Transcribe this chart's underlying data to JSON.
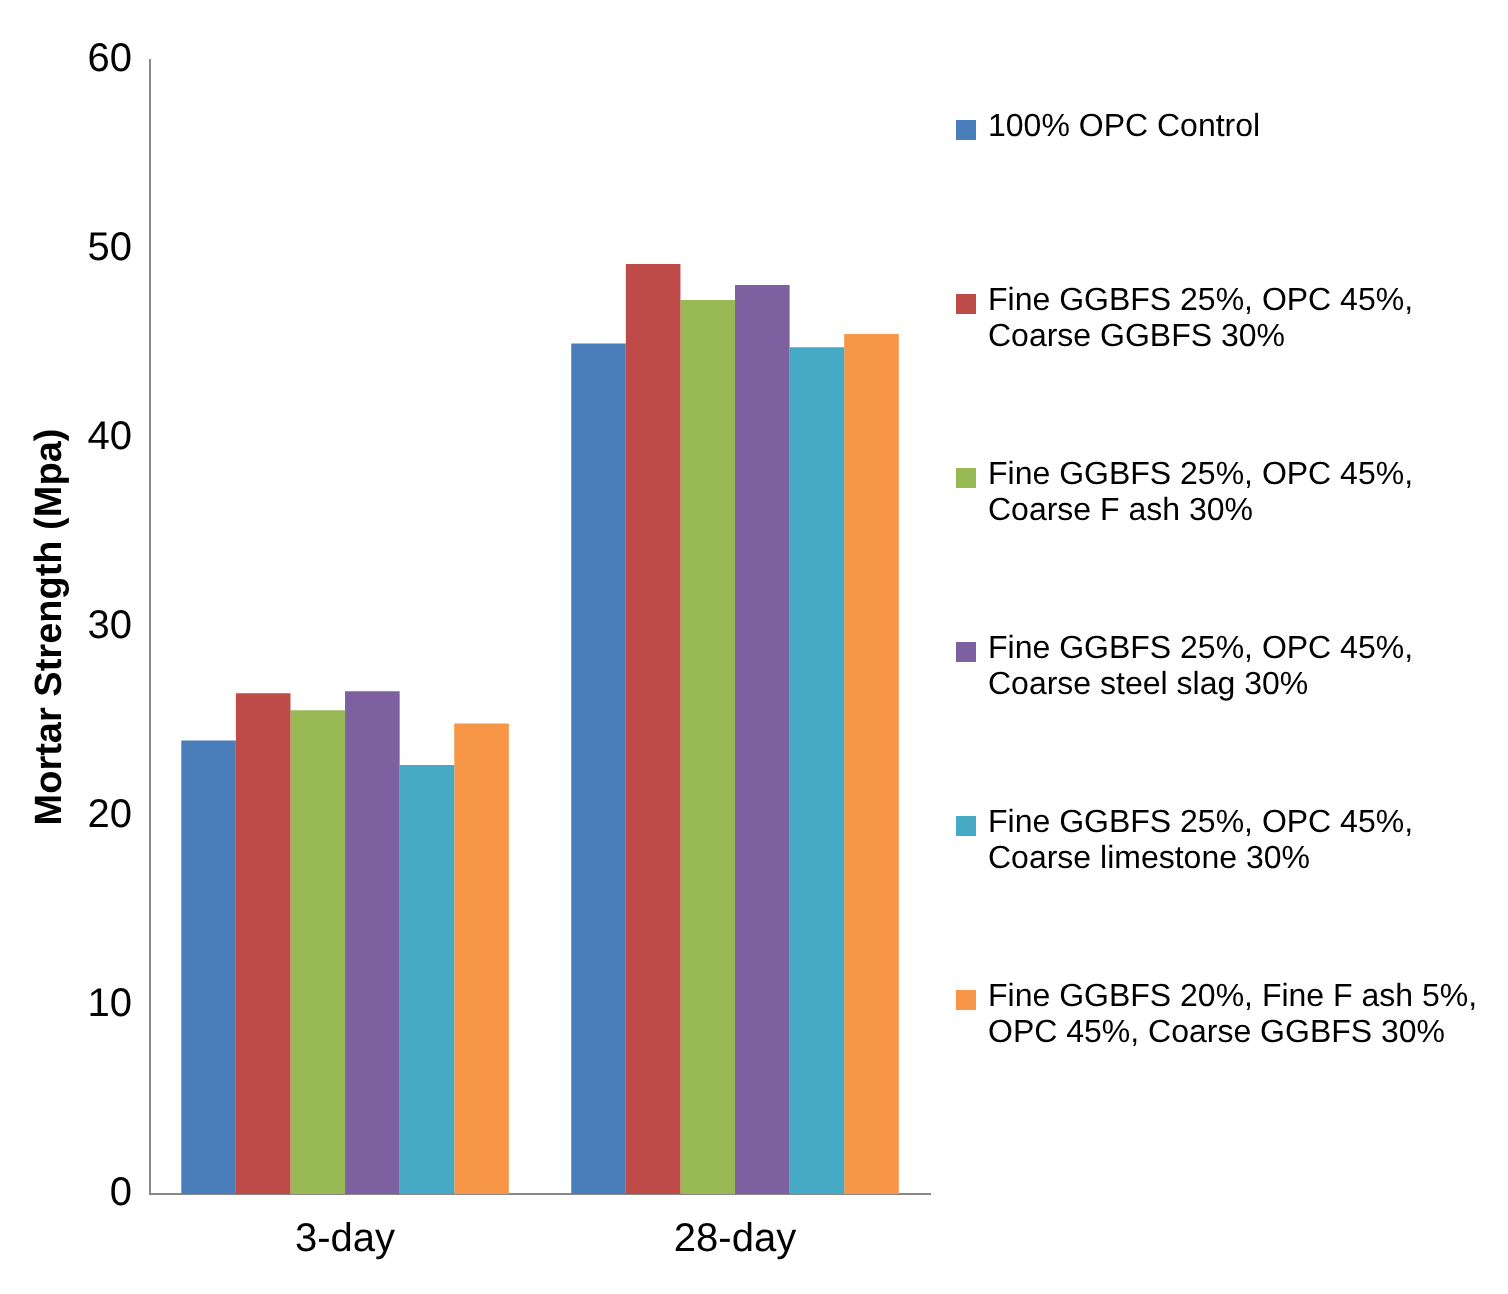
{
  "chart_data": {
    "type": "bar",
    "ylabel": "Mortar Strength (Mpa)",
    "categories": [
      "3-day",
      "28-day"
    ],
    "series": [
      {
        "name": "100% OPC Control",
        "color": "#4a7ebb",
        "values": [
          24.0,
          45.0
        ]
      },
      {
        "name": "Fine GGBFS 25%, OPC 45%, Coarse GGBFS 30%",
        "color": "#be4b48",
        "values": [
          26.5,
          49.2
        ]
      },
      {
        "name": "Fine GGBFS 25%, OPC 45%, Coarse F ash 30%",
        "color": "#98b954",
        "values": [
          25.6,
          47.3
        ]
      },
      {
        "name": "Fine GGBFS 25%, OPC 45%, Coarse steel slag 30%",
        "color": "#7d60a0",
        "values": [
          26.6,
          48.1
        ]
      },
      {
        "name": "Fine GGBFS 25%, OPC 45%, Coarse limestone 30%",
        "color": "#46aac5",
        "values": [
          22.7,
          44.8
        ]
      },
      {
        "name": "Fine GGBFS 20%, Fine F ash 5%, OPC 45%, Coarse GGBFS 30%",
        "color": "#f79646",
        "values": [
          24.9,
          45.5
        ]
      }
    ],
    "ylim": [
      0,
      60
    ],
    "yticks": [
      0,
      10,
      20,
      30,
      40,
      50,
      60
    ],
    "grid": false,
    "legend": "right"
  }
}
